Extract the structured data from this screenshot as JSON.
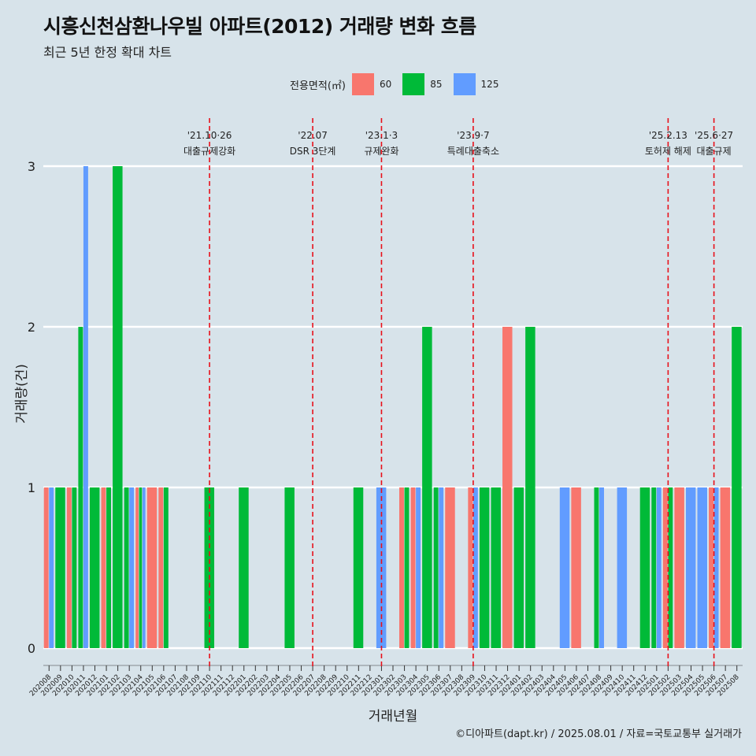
{
  "title": "시흥신천삼환나우빌 아파트(2012) 거래량 변화 흐름",
  "subtitle": "최근 5년 한정 확대 차트",
  "caption": "©디아파트(dapt.kr) / 2025.08.01 / 자료=국토교통부 실거래가",
  "legend": {
    "title": "전용면적(㎡)",
    "items": [
      {
        "label": "60",
        "color": "#f8766d"
      },
      {
        "label": "85",
        "color": "#00ba38"
      },
      {
        "label": "125",
        "color": "#619cff"
      }
    ]
  },
  "chart_data": {
    "type": "bar",
    "xlabel": "거래년월",
    "ylabel": "거래량(건)",
    "ylim": [
      0,
      3
    ],
    "y_ticks": [
      0,
      1,
      2,
      3
    ],
    "grid": true,
    "legend_position": "top",
    "categories": [
      "202008",
      "202009",
      "202010",
      "202011",
      "202012",
      "202101",
      "202102",
      "202103",
      "202104",
      "202105",
      "202106",
      "202107",
      "202108",
      "202109",
      "202110",
      "202111",
      "202112",
      "202201",
      "202202",
      "202203",
      "202204",
      "202205",
      "202206",
      "202207",
      "202208",
      "202209",
      "202210",
      "202211",
      "202212",
      "202301",
      "202302",
      "202303",
      "202304",
      "202305",
      "202306",
      "202307",
      "202308",
      "202309",
      "202310",
      "202311",
      "202312",
      "202401",
      "202402",
      "202403",
      "202404",
      "202405",
      "202406",
      "202407",
      "202408",
      "202409",
      "202410",
      "202411",
      "202412",
      "202501",
      "202502",
      "202503",
      "202504",
      "202505",
      "202506",
      "202507",
      "202508"
    ],
    "series": [
      {
        "name": "60",
        "color": "#f8766d",
        "values": [
          {
            "x": "202008",
            "y": 1
          },
          {
            "x": "202010",
            "y": 1
          },
          {
            "x": "202101",
            "y": 1
          },
          {
            "x": "202104",
            "y": 1
          },
          {
            "x": "202105",
            "y": 1
          },
          {
            "x": "202106",
            "y": 1
          },
          {
            "x": "202303",
            "y": 1
          },
          {
            "x": "202304",
            "y": 1
          },
          {
            "x": "202307",
            "y": 1
          },
          {
            "x": "202309",
            "y": 1
          },
          {
            "x": "202312",
            "y": 2
          },
          {
            "x": "202406",
            "y": 1
          },
          {
            "x": "202502",
            "y": 1
          },
          {
            "x": "202503",
            "y": 1
          },
          {
            "x": "202506",
            "y": 1
          },
          {
            "x": "202507",
            "y": 1
          }
        ]
      },
      {
        "name": "85",
        "color": "#00ba38",
        "values": [
          {
            "x": "202009",
            "y": 1
          },
          {
            "x": "202010",
            "y": 1
          },
          {
            "x": "202011",
            "y": 2
          },
          {
            "x": "202012",
            "y": 1
          },
          {
            "x": "202101",
            "y": 1
          },
          {
            "x": "202102",
            "y": 3
          },
          {
            "x": "202103",
            "y": 1
          },
          {
            "x": "202104",
            "y": 1
          },
          {
            "x": "202106",
            "y": 1
          },
          {
            "x": "202110",
            "y": 1
          },
          {
            "x": "202201",
            "y": 1
          },
          {
            "x": "202205",
            "y": 1
          },
          {
            "x": "202211",
            "y": 1
          },
          {
            "x": "202303",
            "y": 1
          },
          {
            "x": "202305",
            "y": 2
          },
          {
            "x": "202306",
            "y": 1
          },
          {
            "x": "202310",
            "y": 1
          },
          {
            "x": "202311",
            "y": 1
          },
          {
            "x": "202401",
            "y": 1
          },
          {
            "x": "202402",
            "y": 2
          },
          {
            "x": "202408",
            "y": 1
          },
          {
            "x": "202412",
            "y": 1
          },
          {
            "x": "202501",
            "y": 1
          },
          {
            "x": "202502",
            "y": 1
          },
          {
            "x": "202508",
            "y": 2
          }
        ]
      },
      {
        "name": "125",
        "color": "#619cff",
        "values": [
          {
            "x": "202008",
            "y": 1
          },
          {
            "x": "202011",
            "y": 3
          },
          {
            "x": "202103",
            "y": 1
          },
          {
            "x": "202104",
            "y": 1
          },
          {
            "x": "202301",
            "y": 1
          },
          {
            "x": "202304",
            "y": 1
          },
          {
            "x": "202306",
            "y": 1
          },
          {
            "x": "202309",
            "y": 1
          },
          {
            "x": "202405",
            "y": 1
          },
          {
            "x": "202408",
            "y": 1
          },
          {
            "x": "202410",
            "y": 1
          },
          {
            "x": "202501",
            "y": 1
          },
          {
            "x": "202504",
            "y": 1
          },
          {
            "x": "202505",
            "y": 1
          },
          {
            "x": "202506",
            "y": 1
          }
        ]
      }
    ],
    "annotations": [
      {
        "at": "202110",
        "date": "'21.10·26",
        "label": "대출규제강화"
      },
      {
        "at": "202207",
        "date": "'22.07",
        "label": "DSR 3단계"
      },
      {
        "at": "202301",
        "date": "'23.1·3",
        "label": "규제완화"
      },
      {
        "at": "202309",
        "date": "'23.9·7",
        "label": "특례대출축소"
      },
      {
        "at": "202502",
        "date": "'25.2.13",
        "label": "토허제 해제"
      },
      {
        "at": "202506",
        "date": "'25.6·27",
        "label": "대출규제"
      }
    ]
  }
}
